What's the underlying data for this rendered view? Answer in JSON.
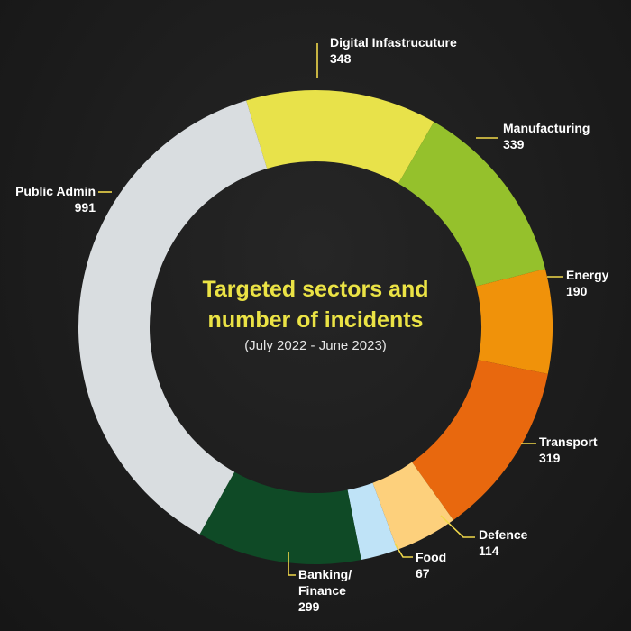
{
  "chart_data": {
    "type": "pie",
    "style": "donut",
    "title_lines": [
      "Targeted sectors and",
      "number of incidents"
    ],
    "subtitle": "(July 2022 - June 2023)",
    "slices": [
      {
        "label_lines": [
          "Digital Infastrucuture"
        ],
        "value": 348,
        "color": "#e8e24a"
      },
      {
        "label_lines": [
          "Manufacturing"
        ],
        "value": 339,
        "color": "#95c12c"
      },
      {
        "label_lines": [
          "Energy"
        ],
        "value": 190,
        "color": "#f0920a"
      },
      {
        "label_lines": [
          "Transport"
        ],
        "value": 319,
        "color": "#e8680e"
      },
      {
        "label_lines": [
          "Defence"
        ],
        "value": 114,
        "color": "#fdd07c"
      },
      {
        "label_lines": [
          "Food"
        ],
        "value": 67,
        "color": "#bfe3f7"
      },
      {
        "label_lines": [
          "Banking/",
          "Finance"
        ],
        "value": 299,
        "color": "#0f4a26"
      },
      {
        "label_lines": [
          "Public Admin"
        ],
        "value": 991,
        "color": "#d9dde0"
      }
    ],
    "background_color": "#1d1d1d",
    "leader_color": "#f0d84a"
  }
}
